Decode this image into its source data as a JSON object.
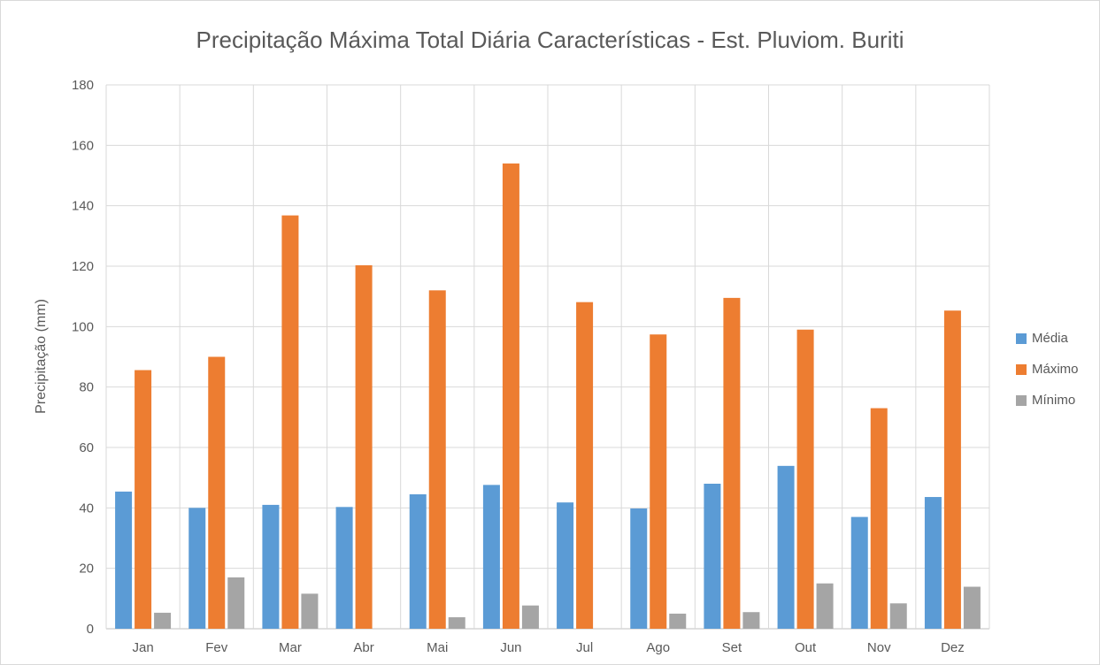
{
  "chart_data": {
    "type": "bar",
    "title": "Precipitação Máxima Total Diária Características - Est. Pluviom. Buriti",
    "xlabel": "",
    "ylabel": "Precipitação (mm)",
    "ylim": [
      0,
      180
    ],
    "yticks": [
      "0",
      "20",
      "40",
      "60",
      "80",
      "100",
      "120",
      "140",
      "160",
      "180"
    ],
    "grid": true,
    "legend_position": "right",
    "categories": [
      "Jan",
      "Fev",
      "Mar",
      "Abr",
      "Mai",
      "Jun",
      "Jul",
      "Ago",
      "Set",
      "Out",
      "Nov",
      "Dez"
    ],
    "series": [
      {
        "name": "Média",
        "color": "#5b9bd5",
        "values": [
          45.4,
          40.0,
          41.0,
          40.3,
          44.5,
          47.6,
          41.8,
          39.8,
          48.0,
          53.9,
          37.0,
          43.6
        ]
      },
      {
        "name": "Máximo",
        "color": "#ed7d31",
        "values": [
          85.6,
          90.0,
          136.8,
          120.3,
          112.0,
          154.0,
          108.1,
          97.4,
          109.5,
          99.0,
          73.0,
          105.3
        ]
      },
      {
        "name": "Mínimo",
        "color": "#a5a5a5",
        "values": [
          5.3,
          17.0,
          11.6,
          0,
          3.8,
          7.7,
          0,
          5.0,
          5.5,
          15.0,
          8.4,
          13.9
        ]
      }
    ]
  }
}
